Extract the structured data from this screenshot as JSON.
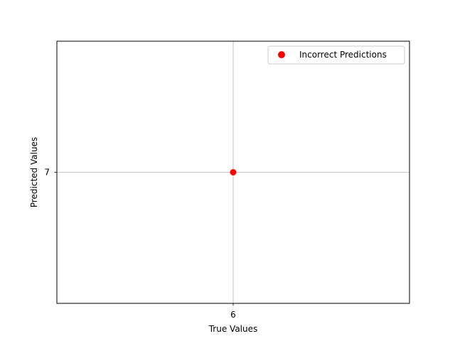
{
  "chart_data": {
    "type": "scatter",
    "title": "",
    "xlabel": "True Values",
    "ylabel": "Predicted Values",
    "x_ticks": [
      6
    ],
    "y_ticks": [
      7
    ],
    "xlim": [
      5.95,
      6.05
    ],
    "ylim": [
      6.95,
      7.05
    ],
    "grid": true,
    "legend_position": "top-right",
    "series": [
      {
        "name": "Incorrect Predictions",
        "color": "#ff0000",
        "marker": "circle",
        "points": [
          {
            "x": 6,
            "y": 7
          }
        ]
      }
    ]
  }
}
